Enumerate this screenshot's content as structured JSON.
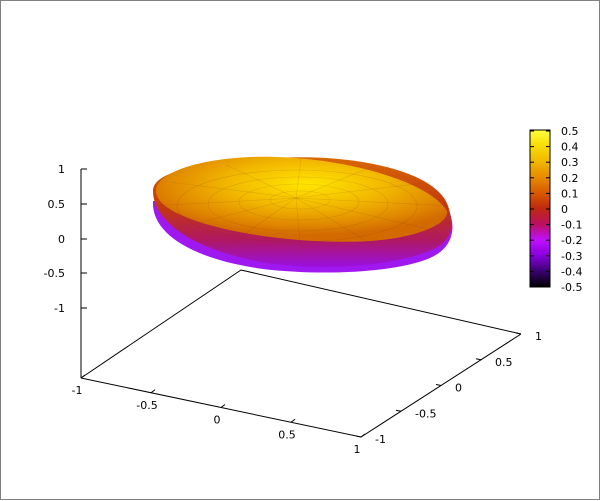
{
  "chart_data": {
    "type": "surface3d",
    "title": "",
    "xlabel": "",
    "ylabel": "",
    "zlabel": "",
    "xlim": [
      -1,
      1
    ],
    "ylim": [
      -1,
      1
    ],
    "zlim": [
      -1,
      1
    ],
    "x_ticks": [
      "-1",
      "-0.5",
      "0",
      "0.5",
      "1"
    ],
    "y_ticks": [
      "-1",
      "-0.5",
      "0",
      "0.5",
      "1"
    ],
    "z_ticks": [
      "1",
      "0.5",
      "0",
      "-0.5",
      "-1"
    ],
    "colorbar": {
      "range": [
        -0.5,
        0.5
      ],
      "ticks": [
        "0.5",
        "0.4",
        "0.3",
        "0.2",
        "0.1",
        "0",
        "-0.1",
        "-0.2",
        "-0.3",
        "-0.4",
        "-0.5"
      ],
      "palette": [
        "#000000",
        "#3a0070",
        "#8800dd",
        "#c010ff",
        "#bb1060",
        "#c02810",
        "#d85a00",
        "#e88a00",
        "#f0b800",
        "#f8dc00",
        "#ffff40"
      ]
    },
    "surface": {
      "shape": "ellipsoid",
      "semi_axes": [
        0.55,
        0.55,
        0.25
      ],
      "center": [
        0,
        0,
        0.3
      ],
      "grid": false,
      "legend": "colorbar-right"
    }
  }
}
